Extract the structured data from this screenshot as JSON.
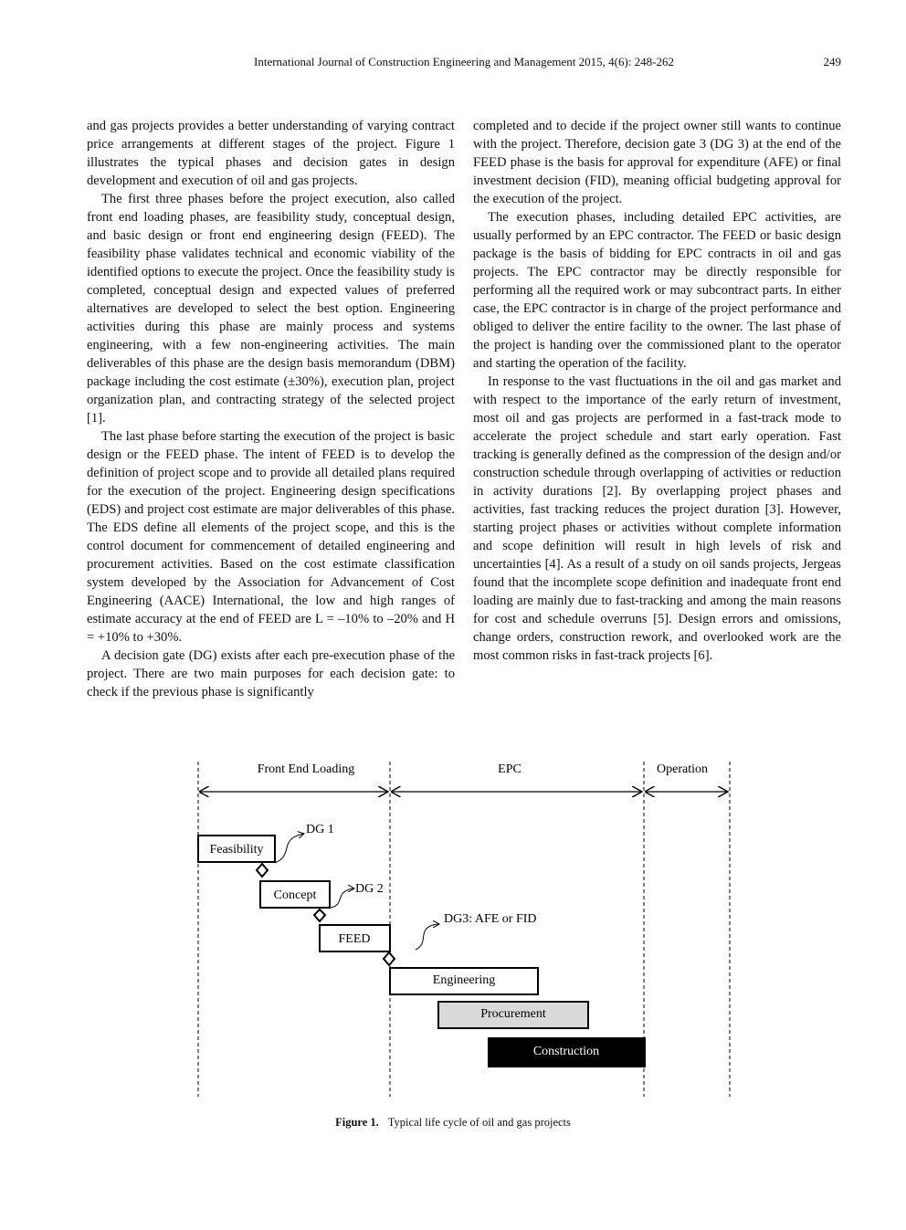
{
  "header": {
    "journal": "International Journal of Construction Engineering and Management 2015, 4(6): 248-262",
    "page_number": "249"
  },
  "left_column": [
    "and gas projects provides a better understanding of varying contract price arrangements at different stages of the project. Figure 1 illustrates the typical phases and decision gates in design development and execution of oil and gas projects.",
    "The first three phases before the project execution, also called front end loading phases, are feasibility study, conceptual design, and basic design or front end engineering design (FEED). The feasibility phase validates technical and economic viability of the identified options to execute the project. Once the feasibility study is completed, conceptual design and expected values of preferred alternatives are developed to select the best option. Engineering activities during this phase are mainly process and systems engineering, with a few non-engineering activities. The main deliverables of this phase are the design basis memorandum (DBM) package including the cost estimate (±30%), execution plan, project organization plan, and contracting strategy of the selected project [1].",
    "The last phase before starting the execution of the project is basic design or the FEED phase. The intent of FEED is to develop the definition of project scope and to provide all detailed plans required for the execution of the project. Engineering design specifications (EDS) and project cost estimate are major deliverables of this phase. The EDS define all elements of the project scope, and this is the control document for commencement of detailed engineering and procurement activities. Based on the cost estimate classification system developed by the Association for Advancement of Cost Engineering (AACE) International, the low and high ranges of estimate accuracy at the end of FEED are L = –10% to –20% and H = +10% to +30%.",
    "A decision gate (DG) exists after each pre-execution phase of the project. There are two main purposes for each decision gate: to check if the previous phase is significantly"
  ],
  "right_column": [
    "completed and to decide if the project owner still wants to continue with the project. Therefore, decision gate 3 (DG 3) at the end of the FEED phase is the basis for approval for expenditure (AFE) or final investment decision (FID), meaning official budgeting approval for the execution of the project.",
    "The execution phases, including detailed EPC activities, are usually performed by an EPC contractor. The FEED or basic design package is the basis of bidding for EPC contracts in oil and gas projects. The EPC contractor may be directly responsible for performing all the required work or may subcontract parts. In either case, the EPC contractor is in charge of the project performance and obliged to deliver the entire facility to the owner. The last phase of the project is handing over the commissioned plant to the operator and starting the operation of the facility.",
    "In response to the vast fluctuations in the oil and gas market and with respect to the importance of the early return of investment, most oil and gas projects are performed in a fast-track mode to accelerate the project schedule and start early operation. Fast tracking is generally defined as the compression of the design and/or construction schedule through overlapping of activities or reduction in activity durations [2]. By overlapping project phases and activities, fast tracking reduces the project duration [3]. However, starting project phases or activities without complete information and scope definition will result in high levels of risk and uncertainties [4]. As a result of a study on oil sands projects, Jergeas found that the incomplete scope definition and inadequate front end loading are mainly due to fast-tracking and among the main reasons for cost and schedule overruns [5]. Design errors and omissions, change orders, construction rework, and overlooked work are the most common risks in fast-track projects [6]."
  ],
  "figure": {
    "phases": [
      "Front End Loading",
      "EPC",
      "Operation"
    ],
    "activities": {
      "feasibility": "Feasibility",
      "concept": "Concept",
      "feed": "FEED",
      "engineering": "Engineering",
      "procurement": "Procurement",
      "construction": "Construction"
    },
    "gates": {
      "dg1": "DG 1",
      "dg2": "DG 2",
      "dg3": "DG3: AFE or FID"
    },
    "caption_label": "Figure 1.",
    "caption_text": "Typical life cycle of oil and gas projects"
  },
  "colors": {
    "procurement_fill": "#d9d9d9",
    "construction_fill": "#000000"
  }
}
